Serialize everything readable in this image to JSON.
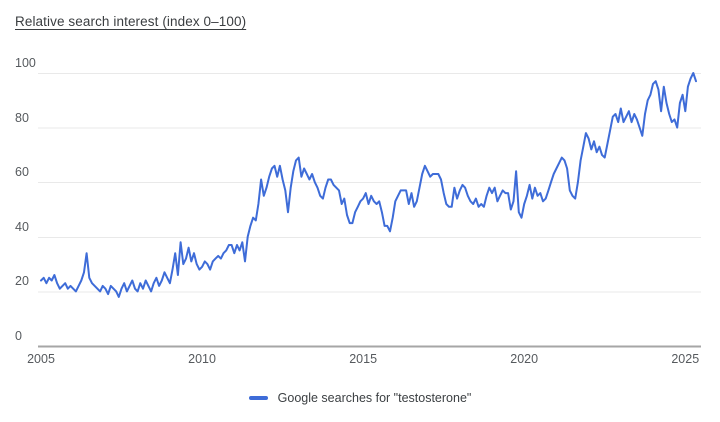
{
  "header": {
    "title": "Relative search interest (index 0–100)"
  },
  "legend": {
    "label": "Google searches for \"testosterone\""
  },
  "colors": {
    "line": "#3e6cd8",
    "grid": "#e9e9e9",
    "axis": "#a6a6a6",
    "tick_text": "#565a5e",
    "title_text": "#3a3d40"
  },
  "chart_data": {
    "type": "line",
    "title": "Relative search interest (index 0–100)",
    "xlabel": "",
    "ylabel": "Relative search interest (index 0–100)",
    "grid": true,
    "legend_position": "bottom",
    "ylim": [
      0,
      100
    ],
    "y_ticks": [
      0,
      20,
      40,
      60,
      80,
      100
    ],
    "x_ticks": [
      "2005",
      "2010",
      "2015",
      "2020",
      "2025"
    ],
    "x_start_year": 2005,
    "interval": "monthly",
    "series": [
      {
        "name": "Google searches for \"testosterone\"",
        "start": "2005-01",
        "end": "2025-05",
        "values": [
          24,
          25,
          23,
          25,
          24,
          26,
          23,
          21,
          22,
          23,
          21,
          22,
          21,
          20,
          22,
          24,
          27,
          34,
          25,
          23,
          22,
          21,
          20,
          22,
          21,
          19,
          22,
          21,
          20,
          18,
          21,
          23,
          20,
          22,
          24,
          21,
          20,
          23,
          21,
          24,
          22,
          20,
          23,
          25,
          22,
          24,
          27,
          25,
          23,
          28,
          34,
          26,
          38,
          30,
          32,
          36,
          31,
          34,
          30,
          28,
          29,
          31,
          30,
          28,
          31,
          32,
          33,
          32,
          34,
          35,
          37,
          37,
          34,
          37,
          35,
          38,
          31,
          40,
          44,
          47,
          46,
          52,
          61,
          55,
          58,
          62,
          65,
          66,
          62,
          66,
          61,
          57,
          49,
          58,
          64,
          68,
          69,
          62,
          65,
          63,
          61,
          63,
          60,
          58,
          55,
          54,
          58,
          61,
          61,
          59,
          58,
          57,
          52,
          54,
          48,
          45,
          45,
          49,
          51,
          53,
          54,
          56,
          52,
          55,
          53,
          52,
          53,
          49,
          44,
          44,
          42,
          47,
          53,
          55,
          57,
          57,
          57,
          52,
          56,
          51,
          53,
          58,
          63,
          66,
          64,
          62,
          63,
          63,
          63,
          61,
          56,
          52,
          51,
          51,
          58,
          54,
          57,
          59,
          58,
          55,
          53,
          52,
          54,
          51,
          52,
          51,
          55,
          58,
          56,
          58,
          53,
          55,
          57,
          56,
          56,
          50,
          53,
          64,
          49,
          47,
          52,
          55,
          59,
          54,
          58,
          55,
          56,
          53,
          54,
          57,
          60,
          63,
          65,
          67,
          69,
          68,
          65,
          57,
          55,
          54,
          60,
          68,
          73,
          78,
          76,
          72,
          75,
          71,
          73,
          70,
          69,
          74,
          79,
          84,
          85,
          82,
          87,
          82,
          84,
          86,
          82,
          85,
          83,
          80,
          77,
          85,
          90,
          92,
          96,
          97,
          94,
          86,
          95,
          89,
          85,
          82,
          83,
          80,
          89,
          92,
          86,
          95,
          98,
          100,
          97
        ]
      }
    ]
  }
}
